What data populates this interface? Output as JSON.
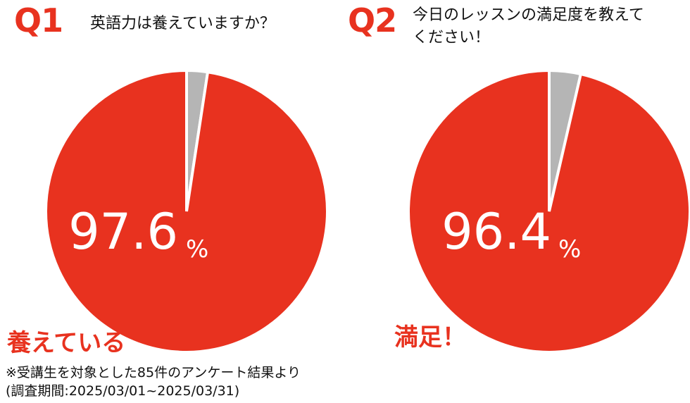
{
  "colors": {
    "accent": "#e8321f",
    "minor": "#b5b5b5",
    "text": "#111111",
    "separator": "#ffffff"
  },
  "chart_data": [
    {
      "type": "pie",
      "question_number": "Q1",
      "question": "英語力は養えていますか？",
      "slices": [
        {
          "label": "養えている",
          "value": 97.6,
          "color": "#e8321f"
        },
        {
          "label": "",
          "value": 2.4,
          "color": "#b5b5b5"
        }
      ],
      "center_value": "97.6",
      "center_unit": "%",
      "highlight_label": "養えている"
    },
    {
      "type": "pie",
      "question_number": "Q2",
      "question_lines": [
        "今日のレッスンの満足度を教えて",
        "ください！"
      ],
      "slices": [
        {
          "label": "満足！",
          "value": 96.4,
          "color": "#e8321f"
        },
        {
          "label": "",
          "value": 3.6,
          "color": "#b5b5b5"
        }
      ],
      "center_value": "96.4",
      "center_unit": "%",
      "highlight_label": "満足！"
    }
  ],
  "footnote": {
    "line1": "※受講生を対象とした85件のアンケート結果より",
    "line2": "(調査期間:2025/03/01~2025/03/31)"
  }
}
